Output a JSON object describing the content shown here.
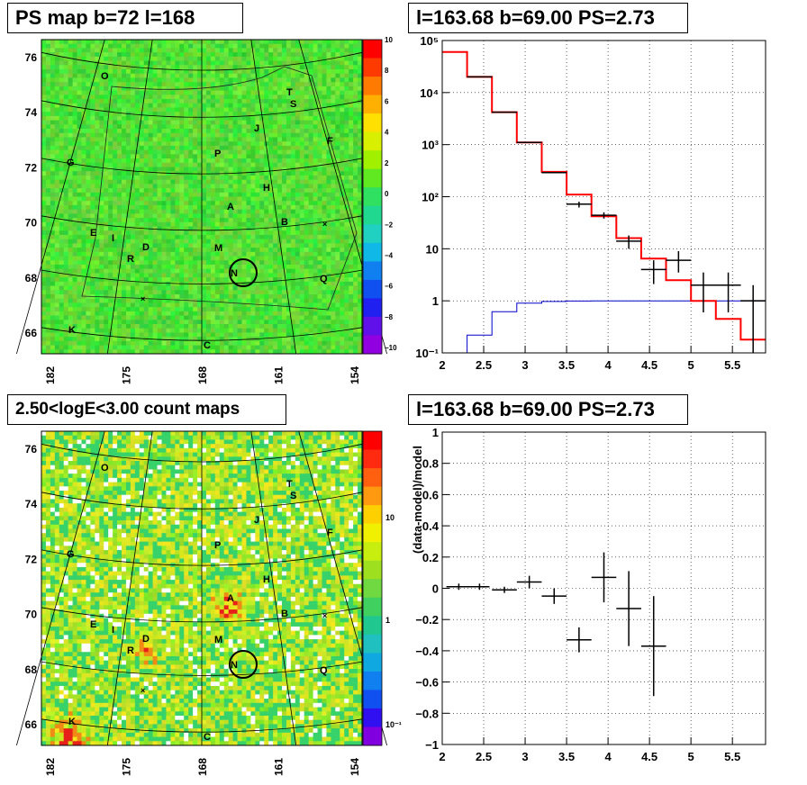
{
  "panels": {
    "ps_map": {
      "title": "PS map b=72 l=168"
    },
    "spectrum": {
      "title": "l=163.68 b=69.00 PS=2.73"
    },
    "count_map": {
      "title": "2.50<logE<3.00 count maps"
    },
    "residual": {
      "title": "l=163.68 b=69.00 PS=2.73"
    }
  },
  "map_labels": [
    "O",
    "T",
    "S",
    "J",
    "F",
    "G",
    "P",
    "H",
    "A",
    "B",
    "E",
    "I",
    "D",
    "R",
    "M",
    "N",
    "Q",
    "K",
    "C"
  ],
  "chart_data": [
    {
      "type": "heatmap",
      "name": "ps_map",
      "x_ticks": [
        "182",
        "175",
        "168",
        "161",
        "154"
      ],
      "y_ticks": [
        "76",
        "74",
        "72",
        "70",
        "68",
        "66"
      ],
      "colorbar_ticks": [
        "10",
        "8",
        "6",
        "4",
        "2",
        "0",
        "−2",
        "−4",
        "−6",
        "−8",
        "−10"
      ],
      "zlim": [
        -10,
        10
      ],
      "source_circle_label": "N"
    },
    {
      "type": "line",
      "name": "spectrum",
      "log_y": true,
      "xlim": [
        2,
        5.9
      ],
      "ylim": [
        0.1,
        100000
      ],
      "x_ticks": [
        "2",
        "2.5",
        "3",
        "3.5",
        "4",
        "4.5",
        "5",
        "5.5"
      ],
      "y_ticks": [
        "10⁻¹",
        "1",
        "10",
        "10²",
        "10³",
        "10⁴",
        "10⁵"
      ],
      "grid": true,
      "model_red": {
        "color": "#ff0000",
        "edges": [
          2.0,
          2.3,
          2.6,
          2.9,
          3.2,
          3.5,
          3.8,
          4.1,
          4.4,
          4.7,
          5.0,
          5.3,
          5.6,
          5.9
        ],
        "values": [
          60000,
          20000,
          4200,
          1100,
          300,
          110,
          42,
          16,
          6.5,
          2.5,
          1.0,
          0.45,
          0.18
        ]
      },
      "background_blue": {
        "color": "#0000cc",
        "edges": [
          2.0,
          2.3,
          2.6,
          2.9,
          3.2,
          3.5,
          3.8,
          4.1,
          4.4,
          4.7,
          5.0,
          5.3,
          5.6,
          5.9
        ],
        "values": [
          0.05,
          0.22,
          0.62,
          0.9,
          0.97,
          0.99,
          1.0,
          1.0,
          1.0,
          1.0,
          1.0,
          1.0,
          1.0
        ]
      },
      "data": [
        {
          "x": 2.45,
          "y": 20000,
          "yerr": [
            19900,
            20100
          ]
        },
        {
          "x": 2.75,
          "y": 4200,
          "yerr": [
            4150,
            4250
          ]
        },
        {
          "x": 3.05,
          "y": 1100,
          "yerr": [
            1090,
            1110
          ]
        },
        {
          "x": 3.35,
          "y": 290,
          "yerr": [
            285,
            300
          ]
        },
        {
          "x": 3.65,
          "y": 72,
          "yerr": [
            62,
            80
          ]
        },
        {
          "x": 3.95,
          "y": 44,
          "yerr": [
            38,
            50
          ]
        },
        {
          "x": 4.25,
          "y": 14,
          "yerr": [
            10,
            18
          ]
        },
        {
          "x": 4.55,
          "y": 4,
          "yerr": [
            2.1,
            6
          ]
        },
        {
          "x": 4.85,
          "y": 6,
          "yerr": [
            3.5,
            9
          ]
        },
        {
          "x": 5.15,
          "y": 2,
          "yerr": [
            0.6,
            3.5
          ]
        },
        {
          "x": 5.45,
          "y": 2,
          "yerr": [
            0.6,
            3.5
          ]
        },
        {
          "x": 5.75,
          "y": 1,
          "yerr": [
            0.1,
            2
          ]
        }
      ]
    },
    {
      "type": "heatmap",
      "name": "count_map",
      "x_ticks": [
        "182",
        "175",
        "168",
        "161",
        "154"
      ],
      "y_ticks": [
        "76",
        "74",
        "72",
        "70",
        "68",
        "66"
      ],
      "colorbar_ticks": [
        "10",
        "1",
        "10⁻¹"
      ],
      "log_z": true
    },
    {
      "type": "scatter",
      "name": "residual",
      "ylabel": "(data-model)/model",
      "xlim": [
        2,
        5.9
      ],
      "ylim": [
        -1,
        1
      ],
      "x_ticks": [
        "2",
        "2.5",
        "3",
        "3.5",
        "4",
        "4.5",
        "5",
        "5.5"
      ],
      "y_ticks": [
        "1",
        "0.8",
        "0.6",
        "0.4",
        "0.2",
        "0",
        "−0.2",
        "−0.4",
        "−0.6",
        "−0.8",
        "−1"
      ],
      "grid": true,
      "data": [
        {
          "x": 2.2,
          "y": 0.01,
          "xerr": 0.15,
          "yerr": 0.02
        },
        {
          "x": 2.45,
          "y": 0.01,
          "xerr": 0.12,
          "yerr": 0.02
        },
        {
          "x": 2.75,
          "y": -0.01,
          "xerr": 0.15,
          "yerr": 0.02
        },
        {
          "x": 3.05,
          "y": 0.04,
          "xerr": 0.15,
          "yerr": 0.04
        },
        {
          "x": 3.35,
          "y": -0.05,
          "xerr": 0.15,
          "yerr": 0.05
        },
        {
          "x": 3.65,
          "y": -0.33,
          "xerr": 0.15,
          "yerr": 0.08
        },
        {
          "x": 3.95,
          "y": 0.07,
          "xerr": 0.15,
          "yerr": 0.16
        },
        {
          "x": 4.25,
          "y": -0.13,
          "xerr": 0.15,
          "yerr": 0.24
        },
        {
          "x": 4.55,
          "y": -0.37,
          "xerr": 0.15,
          "yerr": 0.32
        }
      ]
    }
  ]
}
